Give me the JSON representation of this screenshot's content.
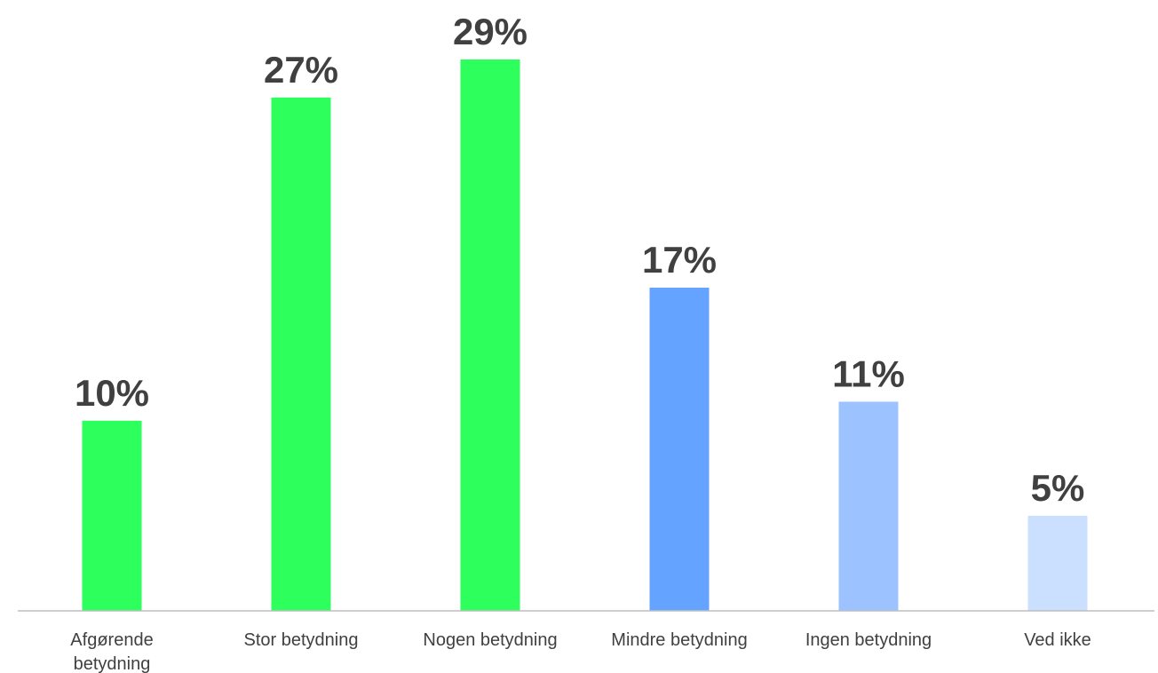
{
  "chart_data": {
    "type": "bar",
    "categories": [
      [
        "Afgørende",
        "betydning"
      ],
      [
        "Stor betydning"
      ],
      [
        "Nogen betydning"
      ],
      [
        "Mindre betydning"
      ],
      [
        "Ingen betydning"
      ],
      [
        "Ved ikke"
      ]
    ],
    "values": [
      10,
      27,
      29,
      17,
      11,
      5
    ],
    "value_labels": [
      "10%",
      "27%",
      "29%",
      "17%",
      "11%",
      "5%"
    ],
    "colors": [
      "#2dff5c",
      "#2dff5c",
      "#2dff5c",
      "#64a3ff",
      "#9cc3ff",
      "#cbdfff"
    ],
    "title": "",
    "xlabel": "",
    "ylabel": "",
    "ylim": [
      0,
      29
    ],
    "grid": false,
    "legend": "none",
    "axis_color": "#bfbfbf",
    "label_color": "#404040"
  }
}
